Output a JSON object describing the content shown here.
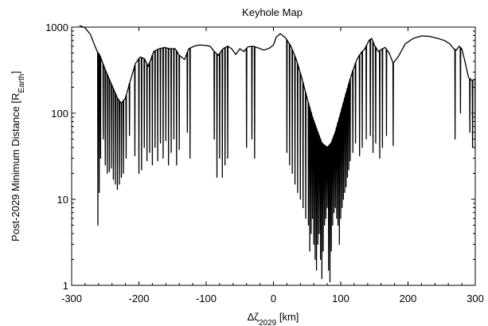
{
  "chart_data": {
    "type": "line",
    "title": "Keyhole Map",
    "xlabel": {
      "base": "Δζ",
      "sub": "2029",
      "unit": " [km]"
    },
    "ylabel": {
      "base": "Post-2029 Minimum Distance [R",
      "sub": "Earth",
      "end": "]"
    },
    "xlim": [
      -300,
      300
    ],
    "ylim": [
      1,
      1000
    ],
    "yscale": "log",
    "x_ticks": [
      -300,
      -200,
      -100,
      0,
      100,
      200,
      300
    ],
    "x_tick_labels": [
      "-300",
      "-200",
      "-100",
      "0",
      "100",
      "200",
      "300"
    ],
    "y_ticks": [
      1,
      10,
      100,
      1000
    ],
    "y_tick_labels": [
      "1",
      "10",
      "100",
      "1000"
    ],
    "grid": false,
    "legend": "none",
    "series": [
      {
        "envelope": [
          [
            -300,
            1100
          ],
          [
            -290,
            1060
          ],
          [
            -280,
            980
          ],
          [
            -272,
            820
          ],
          [
            -266,
            620
          ],
          [
            -262,
            520
          ],
          [
            -258,
            470
          ],
          [
            -250,
            320
          ],
          [
            -240,
            210
          ],
          [
            -232,
            150
          ],
          [
            -226,
            130
          ],
          [
            -220,
            150
          ],
          [
            -212,
            250
          ],
          [
            -205,
            380
          ],
          [
            -198,
            450
          ],
          [
            -192,
            430
          ],
          [
            -186,
            350
          ],
          [
            -178,
            520
          ],
          [
            -170,
            560
          ],
          [
            -162,
            580
          ],
          [
            -154,
            560
          ],
          [
            -146,
            560
          ],
          [
            -140,
            470
          ],
          [
            -132,
            420
          ],
          [
            -126,
            560
          ],
          [
            -118,
            600
          ],
          [
            -110,
            620
          ],
          [
            -100,
            610
          ],
          [
            -94,
            600
          ],
          [
            -88,
            520
          ],
          [
            -82,
            470
          ],
          [
            -75,
            560
          ],
          [
            -68,
            600
          ],
          [
            -62,
            560
          ],
          [
            -56,
            480
          ],
          [
            -50,
            560
          ],
          [
            -44,
            520
          ],
          [
            -38,
            590
          ],
          [
            -30,
            600
          ],
          [
            -22,
            570
          ],
          [
            -14,
            540
          ],
          [
            -6,
            570
          ],
          [
            0,
            620
          ],
          [
            4,
            760
          ],
          [
            10,
            840
          ],
          [
            18,
            750
          ],
          [
            26,
            600
          ],
          [
            34,
            420
          ],
          [
            42,
            260
          ],
          [
            50,
            150
          ],
          [
            58,
            90
          ],
          [
            66,
            60
          ],
          [
            72,
            45
          ],
          [
            80,
            40
          ],
          [
            86,
            45
          ],
          [
            92,
            60
          ],
          [
            100,
            100
          ],
          [
            108,
            170
          ],
          [
            116,
            280
          ],
          [
            124,
            420
          ],
          [
            130,
            500
          ],
          [
            136,
            560
          ],
          [
            142,
            700
          ],
          [
            146,
            740
          ],
          [
            150,
            620
          ],
          [
            156,
            520
          ],
          [
            162,
            560
          ],
          [
            166,
            580
          ],
          [
            172,
            500
          ],
          [
            178,
            380
          ],
          [
            186,
            460
          ],
          [
            196,
            640
          ],
          [
            208,
            740
          ],
          [
            220,
            790
          ],
          [
            232,
            780
          ],
          [
            244,
            740
          ],
          [
            254,
            700
          ],
          [
            262,
            640
          ],
          [
            268,
            560
          ],
          [
            272,
            540
          ],
          [
            276,
            600
          ],
          [
            280,
            560
          ],
          [
            284,
            420
          ],
          [
            290,
            260
          ],
          [
            295,
            240
          ],
          [
            300,
            250
          ]
        ],
        "dips": [
          [
            -261,
            5
          ],
          [
            -259,
            12
          ],
          [
            -257,
            30
          ],
          [
            -253,
            50
          ],
          [
            -250,
            25
          ],
          [
            -247,
            20
          ],
          [
            -244,
            21
          ],
          [
            -241,
            23
          ],
          [
            -238,
            17
          ],
          [
            -235,
            15
          ],
          [
            -232,
            13
          ],
          [
            -229,
            15
          ],
          [
            -226,
            18
          ],
          [
            -223,
            20
          ],
          [
            -219,
            30
          ],
          [
            -214,
            55
          ],
          [
            -206,
            32
          ],
          [
            -200,
            20
          ],
          [
            -196,
            22
          ],
          [
            -192,
            40
          ],
          [
            -188,
            28
          ],
          [
            -184,
            35
          ],
          [
            -180,
            25
          ],
          [
            -176,
            40
          ],
          [
            -172,
            28
          ],
          [
            -168,
            45
          ],
          [
            -164,
            30
          ],
          [
            -160,
            48
          ],
          [
            -156,
            25
          ],
          [
            -152,
            35
          ],
          [
            -148,
            50
          ],
          [
            -144,
            25
          ],
          [
            -140,
            38
          ],
          [
            -128,
            60
          ],
          [
            -124,
            30
          ],
          [
            -88,
            50
          ],
          [
            -84,
            18
          ],
          [
            -80,
            30
          ],
          [
            -76,
            18
          ],
          [
            -72,
            25
          ],
          [
            -68,
            30
          ],
          [
            -40,
            40
          ],
          [
            -32,
            50
          ],
          [
            -28,
            30
          ],
          [
            20,
            35
          ],
          [
            24,
            25
          ],
          [
            28,
            20
          ],
          [
            32,
            15
          ],
          [
            36,
            12
          ],
          [
            40,
            10
          ],
          [
            44,
            8
          ],
          [
            48,
            6
          ],
          [
            52,
            5
          ],
          [
            54,
            2.5
          ],
          [
            56,
            4
          ],
          [
            58,
            6
          ],
          [
            60,
            3
          ],
          [
            62,
            2
          ],
          [
            64,
            1.5
          ],
          [
            66,
            3
          ],
          [
            68,
            4
          ],
          [
            70,
            2
          ],
          [
            72,
            1.2
          ],
          [
            74,
            2.5
          ],
          [
            76,
            5
          ],
          [
            78,
            6
          ],
          [
            80,
            8
          ],
          [
            82,
            1.5
          ],
          [
            84,
            1.1
          ],
          [
            86,
            2.5
          ],
          [
            88,
            5
          ],
          [
            90,
            7
          ],
          [
            92,
            8
          ],
          [
            94,
            6
          ],
          [
            96,
            5
          ],
          [
            98,
            3
          ],
          [
            100,
            6
          ],
          [
            102,
            8
          ],
          [
            104,
            10
          ],
          [
            106,
            12
          ],
          [
            108,
            14
          ],
          [
            110,
            18
          ],
          [
            112,
            22
          ],
          [
            114,
            28
          ],
          [
            118,
            35
          ],
          [
            122,
            45
          ],
          [
            128,
            32
          ],
          [
            132,
            40
          ],
          [
            138,
            50
          ],
          [
            144,
            55
          ],
          [
            148,
            35
          ],
          [
            152,
            45
          ],
          [
            158,
            30
          ],
          [
            162,
            40
          ],
          [
            168,
            55
          ],
          [
            178,
            42
          ],
          [
            270,
            50
          ],
          [
            278,
            100
          ],
          [
            292,
            60
          ],
          [
            296,
            40
          ],
          [
            300,
            38
          ]
        ]
      }
    ]
  }
}
